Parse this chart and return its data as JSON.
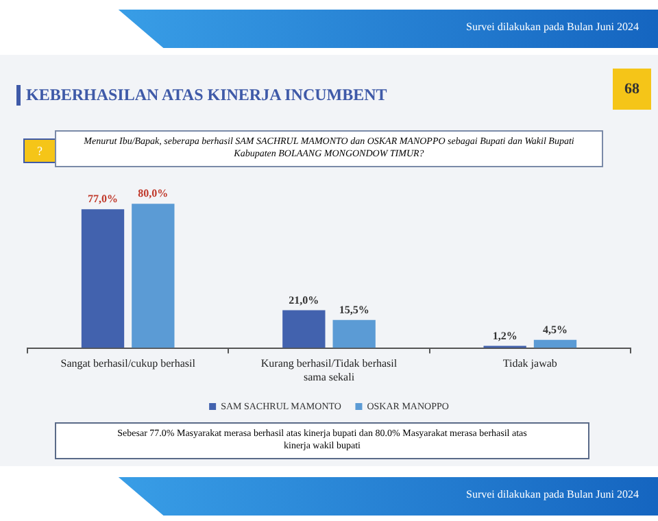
{
  "chart_data": {
    "type": "bar",
    "title": "KEBERHASILAN ATAS KINERJA INCUMBENT",
    "subtitle": "Menurut Ibu/Bapak, seberapa berhasil SAM SACHRUL MAMONTO dan OSKAR MANOPPO sebagai Bupati dan Wakil Bupati Kabupaten BOLAANG MONGONDOW TIMUR?",
    "categories": [
      "Sangat berhasil/cukup berhasil",
      "Kurang berhasil/Tidak berhasil sama sekali",
      "Tidak jawab"
    ],
    "series": [
      {
        "name": "SAM SACHRUL MAMONTO",
        "color": "#4262ae",
        "values": [
          77.0,
          21.0,
          1.2
        ],
        "value_labels": [
          "77,0%",
          "21,0%",
          "1,2%"
        ]
      },
      {
        "name": "OSKAR MANOPPO",
        "color": "#5b9bd5",
        "values": [
          80.0,
          15.5,
          4.5
        ],
        "value_labels": [
          "80,0%",
          "15,5%",
          "4,5%"
        ]
      }
    ],
    "legend": "bottom",
    "grid": false,
    "annotations": [
      "Survei dilakukan pada Bulan Juni 2024",
      "68",
      "?",
      "Sebesar 77.0% Masyarakat merasa berhasil atas kinerja bupati dan 80.0% Masyarakat merasa berhasil atas kinerja wakil bupati",
      "Survei dilakukan pada Bulan Juni 2024"
    ]
  }
}
